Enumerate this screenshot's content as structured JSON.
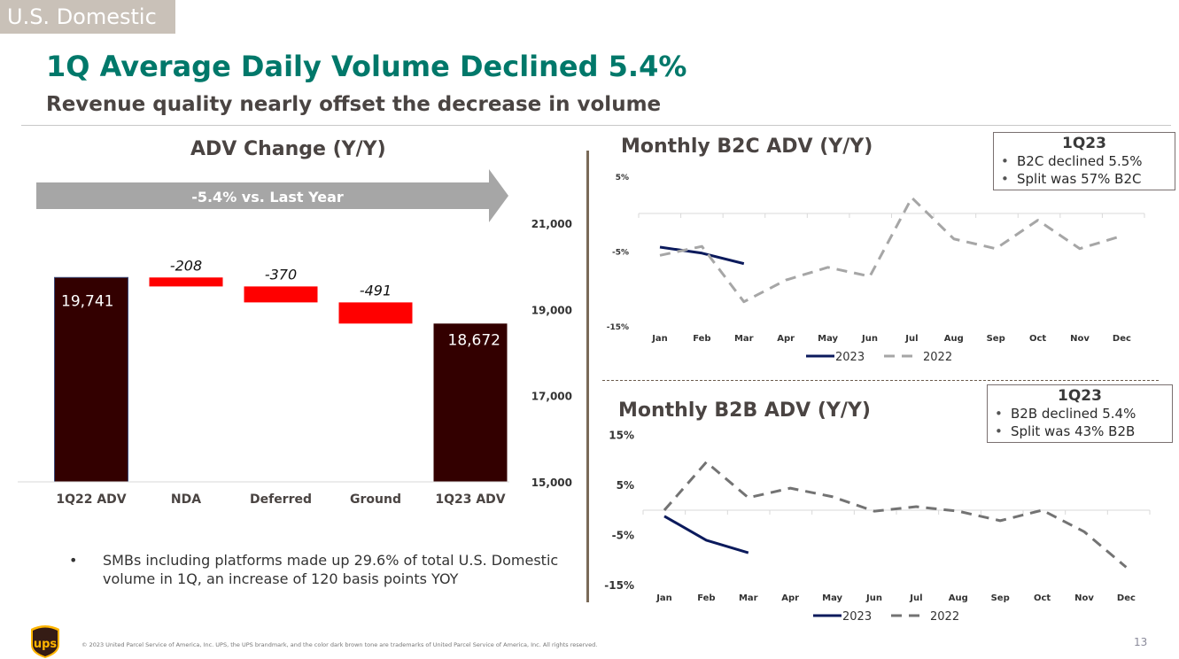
{
  "header": {
    "section_tag": "U.S. Domestic",
    "title": "1Q Average Daily Volume Declined 5.4%",
    "subtitle": "Revenue quality nearly offset the decrease in volume"
  },
  "colors": {
    "title": "#00786a",
    "bar_total": "#330000",
    "bar_negative": "#ff0000",
    "line_2023": "#0b1a5c",
    "line_2022_b2c": "#a6a6a6",
    "line_2022_b2b": "#737373",
    "arrow": "#a6a6a6"
  },
  "arrow_banner": {
    "label": "-5.4% vs. Last Year"
  },
  "bullet": {
    "text": "SMBs including platforms made up 29.6% of total U.S. Domestic volume in 1Q, an increase of 120 basis points YOY"
  },
  "callouts": [
    {
      "head": "1Q23",
      "items": [
        "B2C declined 5.5%",
        "Split was 57% B2C"
      ]
    },
    {
      "head": "1Q23",
      "items": [
        "B2B declined 5.4%",
        "Split was 43% B2B"
      ]
    }
  ],
  "footer": {
    "copyright": "© 2023 United Parcel Service of America, Inc. UPS, the UPS brandmark, and the color dark brown tone are trademarks of United Parcel Service of America, Inc. All rights reserved.",
    "page_number": "13",
    "logo_text": "ups"
  },
  "chart_data": [
    {
      "type": "bar",
      "subtype": "waterfall",
      "title": "ADV Change (Y/Y)",
      "categories": [
        "1Q22 ADV",
        "NDA",
        "Deferred",
        "Ground",
        "1Q23 ADV"
      ],
      "values": [
        19741,
        -208,
        -370,
        -491,
        18672
      ],
      "labels": [
        "19,741",
        "-208",
        "-370",
        "-491",
        "18,672"
      ],
      "kinds": [
        "total",
        "delta",
        "delta",
        "delta",
        "total"
      ],
      "ylim": [
        15000,
        22000
      ],
      "yticks": [
        15000,
        17000,
        19000,
        21000
      ],
      "ytick_labels": [
        "15,000",
        "17,000",
        "19,000",
        "21,000"
      ],
      "y_axis_side": "right",
      "grid": false
    },
    {
      "type": "line",
      "title": "Monthly B2C ADV (Y/Y)",
      "categories": [
        "Jan",
        "Feb",
        "Mar",
        "Apr",
        "May",
        "Jun",
        "Jul",
        "Aug",
        "Sep",
        "Oct",
        "Nov",
        "Dec"
      ],
      "series": [
        {
          "name": "2023",
          "style": "solid",
          "values": [
            -4.5,
            -5.3,
            -6.7,
            null,
            null,
            null,
            null,
            null,
            null,
            null,
            null,
            null
          ]
        },
        {
          "name": "2022",
          "style": "dashed",
          "values": [
            -5.6,
            -4.4,
            -11.8,
            -8.9,
            -7.2,
            -8.4,
            2.1,
            -3.4,
            -4.7,
            -0.9,
            -4.7,
            -3.0
          ]
        }
      ],
      "ylim": [
        -15,
        5
      ],
      "yticks": [
        5,
        -5,
        -15
      ],
      "ytick_labels": [
        "5%",
        "-5%",
        "-15%"
      ],
      "legend": "bottom",
      "grid": false
    },
    {
      "type": "line",
      "title": "Monthly B2B ADV (Y/Y)",
      "categories": [
        "Jan",
        "Feb",
        "Mar",
        "Apr",
        "May",
        "Jun",
        "Jul",
        "Aug",
        "Sep",
        "Oct",
        "Nov",
        "Dec"
      ],
      "series": [
        {
          "name": "2023",
          "style": "solid",
          "values": [
            -1.2,
            -6.0,
            -8.5,
            null,
            null,
            null,
            null,
            null,
            null,
            null,
            null,
            null
          ]
        },
        {
          "name": "2022",
          "style": "dashed",
          "values": [
            0.0,
            9.6,
            2.5,
            4.4,
            2.7,
            -0.2,
            0.7,
            -0.2,
            -2.1,
            0.0,
            -4.3,
            -11.4
          ]
        }
      ],
      "ylim": [
        -15,
        15
      ],
      "yticks": [
        15,
        5,
        -5,
        -15
      ],
      "ytick_labels": [
        "15%",
        "5%",
        "-5%",
        "-15%"
      ],
      "legend": "bottom",
      "grid": false
    }
  ]
}
